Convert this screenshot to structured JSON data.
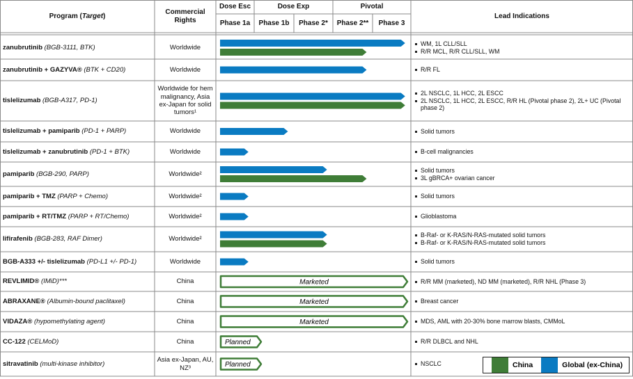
{
  "header": {
    "program": [
      "Program (",
      "Target",
      ")"
    ],
    "rights": "Commercial Rights",
    "groups": [
      "Dose Esc",
      "Dose Exp",
      "Pivotal"
    ],
    "phases": [
      "Phase 1a",
      "Phase 1b",
      "Phase 2*",
      "Phase 2**",
      "Phase 3"
    ],
    "indications": "Lead Indications"
  },
  "legend": [
    {
      "name": "China",
      "color": "#3f7d37"
    },
    {
      "name": "Global (ex-China)",
      "color": "#0a7bc2"
    }
  ],
  "rows": [
    {
      "name": "zanubrutinib",
      "detail": "(BGB-3111, BTK)",
      "rights": "Worldwide",
      "bars": [
        {
          "region": "Global (ex-China)",
          "to": "Phase 3"
        },
        {
          "region": "China",
          "to": "Phase 2**"
        }
      ],
      "indications": [
        "WM, 1L CLL/SLL",
        "R/R MCL, R/R CLL/SLL, WM"
      ]
    },
    {
      "name": "zanubrutinib + GAZYVA®",
      "detail": "(BTK + CD20)",
      "rights": "Worldwide",
      "bars": [
        {
          "region": "Global (ex-China)",
          "to": "Phase 2**"
        }
      ],
      "indications": [
        "R/R FL"
      ]
    },
    {
      "name": "tislelizumab",
      "detail": "(BGB-A317, PD-1)",
      "rights": "Worldwide for hem malignancy, Asia ex-Japan for solid tumors¹",
      "bars": [
        {
          "region": "Global (ex-China)",
          "to": "Phase 3"
        },
        {
          "region": "China",
          "to": "Phase 3"
        }
      ],
      "indications": [
        "2L NSCLC, 1L HCC, 2L ESCC",
        "2L NSCLC, 1L HCC, 2L ESCC, R/R HL (Pivotal phase 2), 2L+ UC (Pivotal phase 2)"
      ]
    },
    {
      "name": "tislelizumab + pamiparib",
      "detail": "(PD-1 + PARP)",
      "rights": "Worldwide",
      "bars": [
        {
          "region": "Global (ex-China)",
          "to": "Phase 1b"
        }
      ],
      "indications": [
        "Solid tumors"
      ]
    },
    {
      "name": "tislelizumab + zanubrutinib",
      "detail": "(PD-1 + BTK)",
      "rights": "Worldwide",
      "bars": [
        {
          "region": "Global (ex-China)",
          "to": "Phase 1a"
        }
      ],
      "indications": [
        "B-cell malignancies"
      ]
    },
    {
      "name": "pamiparib",
      "detail": "(BGB-290, PARP)",
      "rights": "Worldwide²",
      "bars": [
        {
          "region": "Global (ex-China)",
          "to": "Phase 2*"
        },
        {
          "region": "China",
          "to": "Phase 2**"
        }
      ],
      "indications": [
        "Solid tumors",
        "3L gBRCA+ ovarian cancer"
      ]
    },
    {
      "name": "pamiparib + TMZ",
      "detail": "(PARP + Chemo)",
      "rights": "Worldwide²",
      "bars": [
        {
          "region": "Global (ex-China)",
          "to": "Phase 1a"
        }
      ],
      "indications": [
        "Solid tumors"
      ]
    },
    {
      "name": "pamiparib + RT/TMZ",
      "detail": "(PARP + RT/Chemo)",
      "rights": "Worldwide²",
      "bars": [
        {
          "region": "Global (ex-China)",
          "to": "Phase 1a"
        }
      ],
      "indications": [
        "Glioblastoma"
      ]
    },
    {
      "name": "lifirafenib",
      "detail": "(BGB-283, RAF Dimer)",
      "rights": "Worldwide²",
      "bars": [
        {
          "region": "Global (ex-China)",
          "to": "Phase 2*"
        },
        {
          "region": "China",
          "to": "Phase 2*"
        }
      ],
      "indications": [
        "B-Raf- or K-RAS/N-RAS-mutated solid tumors",
        "B-Raf- or K-RAS/N-RAS-mutated solid tumors"
      ]
    },
    {
      "name": "BGB-A333 +/- tislelizumab",
      "detail": "(PD-L1 +/- PD-1)",
      "rights": "Worldwide",
      "bars": [
        {
          "region": "Global (ex-China)",
          "to": "Phase 1a"
        }
      ],
      "indications": [
        "Solid tumors"
      ]
    },
    {
      "name": "REVLIMID®",
      "detail": "(IMiD)***",
      "rights": "China",
      "status": "Marketed",
      "indications": [
        "R/R MM (marketed), ND MM (marketed), R/R NHL (Phase 3)"
      ]
    },
    {
      "name": "ABRAXANE®",
      "detail": "(Albumin-bound paclitaxel)",
      "rights": "China",
      "status": "Marketed",
      "indications": [
        "Breast cancer"
      ]
    },
    {
      "name": "VIDAZA®",
      "detail": "(hypomethylating agent)",
      "rights": "China",
      "status": "Marketed",
      "indications": [
        "MDS, AML with 20-30% bone marrow blasts, CMMoL"
      ]
    },
    {
      "name": "CC-122",
      "detail": "(CELMoD)",
      "rights": "China",
      "status": "Planned",
      "indications": [
        "R/R DLBCL and NHL"
      ]
    },
    {
      "name": "sitravatinib",
      "detail": "(multi-kinase inhibitor)",
      "rights": "Asia ex-Japan, AU, NZ³",
      "status": "Planned",
      "indications": [
        "NSCLC"
      ]
    }
  ]
}
